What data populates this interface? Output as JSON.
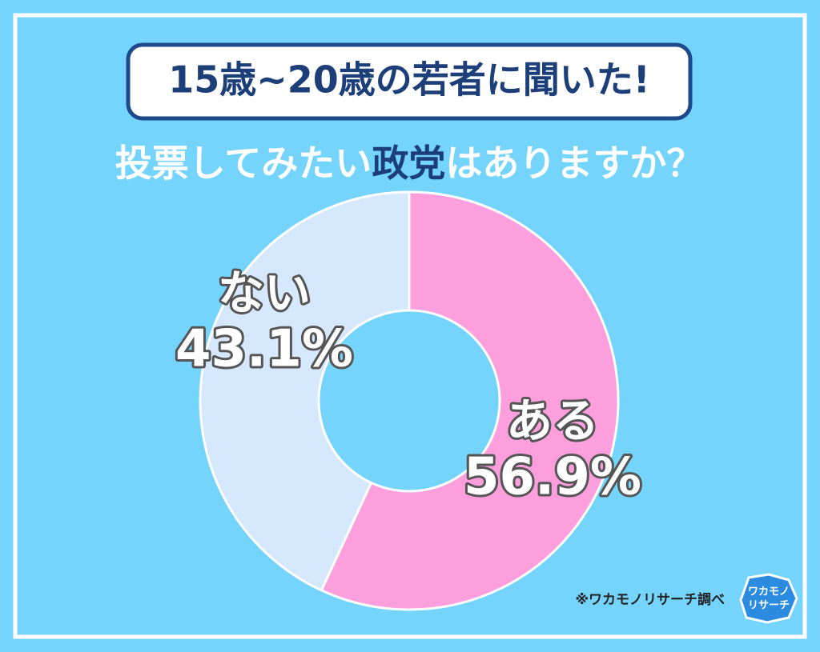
{
  "chart_data": {
    "type": "pie",
    "title": "15歳~20歳の若者に聞いた!",
    "subtitle": [
      "投票してみたい",
      "政党",
      "はありますか？"
    ],
    "categories": [
      "ある",
      "ない"
    ],
    "values": [
      56.9,
      43.1
    ],
    "value_labels": [
      "56.9%",
      "43.1%"
    ],
    "colors": [
      "#fd9fdd",
      "#d6e8fd"
    ],
    "source": "※ワカモノリサーチ調べ",
    "logo": [
      "ワカモノ",
      "リサーチ"
    ]
  }
}
